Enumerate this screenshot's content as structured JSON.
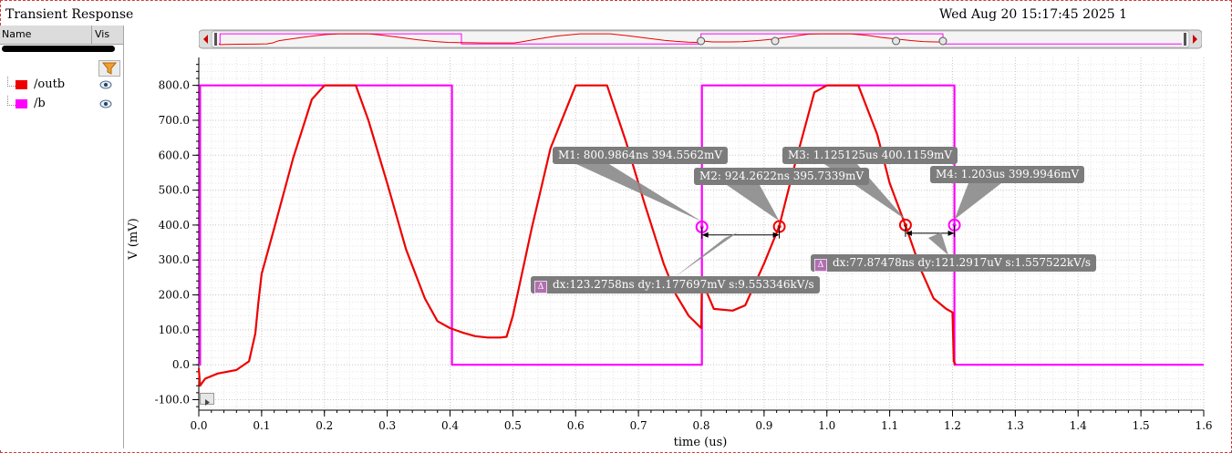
{
  "window": {
    "title": "Transient Response",
    "timestamp": "Wed Aug 20 15:17:45 2025   1"
  },
  "legend": {
    "header_name": "Name",
    "header_vis": "Vis",
    "items": [
      {
        "label": "/outb",
        "color": "#ee0000"
      },
      {
        "label": "/b",
        "color": "#ff00ff"
      }
    ]
  },
  "markers": [
    {
      "label": "M1: 800.9864ns 394.5562mV"
    },
    {
      "label": "M2: 924.2622ns 395.7339mV"
    },
    {
      "label": "M3: 1.125125us 400.1159mV"
    },
    {
      "label": "M4: 1.203us 399.9946mV"
    }
  ],
  "deltas": [
    {
      "label": "dx:123.2758ns dy:1.177697mV s:9.553346kV/s"
    },
    {
      "label": "dx:77.87478ns dy:121.2917uV s:1.557522kV/s"
    }
  ],
  "chart_data": {
    "type": "line",
    "title": "Transient Response",
    "xlabel": "time (us)",
    "ylabel": "V (mV)",
    "xlim": [
      0.0,
      1.6
    ],
    "ylim": [
      -130,
      880
    ],
    "x_ticks": [
      "0.0",
      "0.1",
      "0.2",
      "0.3",
      "0.4",
      "0.5",
      "0.6",
      "0.7",
      "0.8",
      "0.9",
      "1.0",
      "1.1",
      "1.2",
      "1.3",
      "1.4",
      "1.5",
      "1.6"
    ],
    "y_ticks": [
      "-100.0",
      "0.0",
      "100.0",
      "200.0",
      "300.0",
      "400.0",
      "500.0",
      "600.0",
      "700.0",
      "800.0"
    ],
    "grid": true,
    "series": [
      {
        "name": "/outb",
        "color": "#ee0000",
        "x": [
          0.0,
          0.002,
          0.01,
          0.03,
          0.06,
          0.08,
          0.09,
          0.095,
          0.1,
          0.12,
          0.15,
          0.18,
          0.2,
          0.25,
          0.27,
          0.3,
          0.33,
          0.36,
          0.38,
          0.4,
          0.42,
          0.44,
          0.46,
          0.48,
          0.49,
          0.5,
          0.53,
          0.56,
          0.6,
          0.65,
          0.68,
          0.71,
          0.74,
          0.76,
          0.78,
          0.8,
          0.801,
          0.82,
          0.85,
          0.87,
          0.9,
          0.924,
          0.95,
          0.98,
          1.0,
          1.05,
          1.08,
          1.1,
          1.125,
          1.15,
          1.17,
          1.19,
          1.2,
          1.202,
          1.205
        ],
        "y": [
          -10,
          -60,
          -40,
          -25,
          -15,
          10,
          90,
          180,
          260,
          390,
          590,
          760,
          800,
          800,
          700,
          520,
          330,
          190,
          125,
          105,
          92,
          82,
          78,
          78,
          80,
          140,
          390,
          620,
          800,
          800,
          640,
          460,
          290,
          200,
          140,
          105,
          240,
          160,
          155,
          170,
          290,
          396,
          580,
          780,
          800,
          800,
          660,
          520,
          400,
          270,
          190,
          160,
          150,
          10,
          0
        ]
      },
      {
        "name": "/b",
        "color": "#ff00ff",
        "x": [
          0.0,
          0.002,
          0.002,
          0.403,
          0.403,
          0.801,
          0.801,
          1.203,
          1.203,
          1.6
        ],
        "y": [
          0,
          0,
          800,
          800,
          0,
          0,
          800,
          800,
          0,
          0
        ]
      }
    ],
    "markers": [
      {
        "x": 0.8009864,
        "y": 394.5562,
        "series": "/b"
      },
      {
        "x": 0.9242622,
        "y": 395.7339,
        "series": "/outb"
      },
      {
        "x": 1.125125,
        "y": 400.1159,
        "series": "/outb"
      },
      {
        "x": 1.203,
        "y": 399.9946,
        "series": "/b"
      }
    ]
  }
}
